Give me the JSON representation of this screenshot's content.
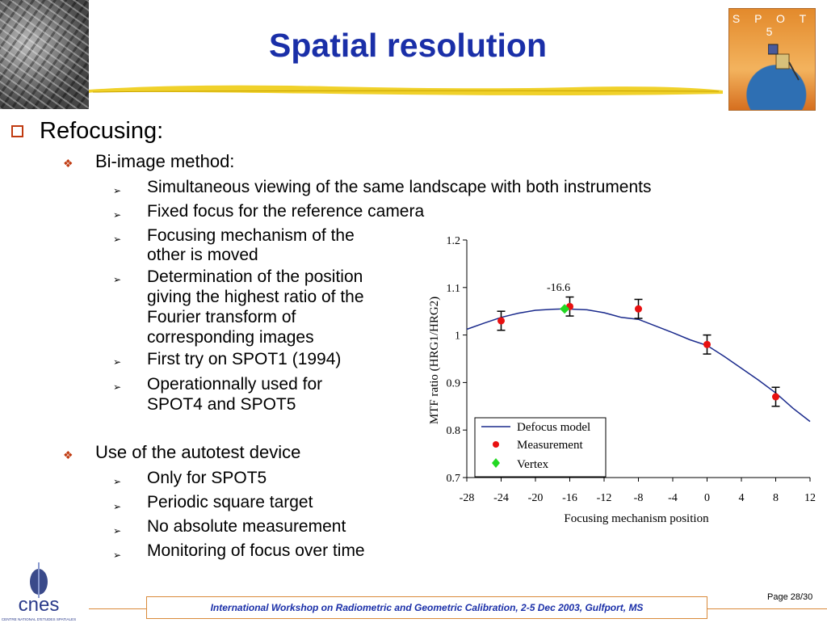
{
  "slide": {
    "title": "Spatial resolution",
    "logo_text": "S P O T 5",
    "page": "Page 28/30",
    "footer": "International Workshop on Radiometric and Geometric Calibration, 2-5 Dec 2003, Gulfport, MS",
    "cnes_text": "cnes",
    "cnes_subtext": "CENTRE NATIONAL D'ETUDES SPATIALES"
  },
  "content": {
    "l1": "Refocusing:",
    "bi_image": {
      "label": "Bi-image method:",
      "items": [
        "Simultaneous viewing of the same landscape with both instruments",
        "Fixed focus for the reference camera",
        "Focusing mechanism of the",
        "other is moved",
        "Determination of the position",
        "giving the highest ratio of the",
        "Fourier transform of",
        "corresponding images",
        "First try on SPOT1 (1994)",
        "Operationnally used for",
        "SPOT4 and SPOT5"
      ]
    },
    "autotest": {
      "label": "Use of the autotest device",
      "items": [
        "Only for SPOT5",
        "Periodic square target",
        "No absolute measurement",
        "Monitoring of focus over time"
      ]
    }
  },
  "chart_data": {
    "type": "scatter",
    "xlabel": "Focusing mechanism position",
    "ylabel": "MTF ratio (HRG1/HRG2)",
    "xlim": [
      -28,
      12
    ],
    "ylim": [
      0.7,
      1.2
    ],
    "xticks": [
      "-28",
      "-24",
      "-20",
      "-16",
      "-12",
      "-8",
      "-4",
      "0",
      "4",
      "8",
      "12"
    ],
    "yticks": [
      "0.7",
      "0.8",
      "0.9",
      "1",
      "1.1",
      "1.2"
    ],
    "xtick_values": [
      -28,
      -24,
      -20,
      -16,
      -12,
      -8,
      -4,
      0,
      4,
      8,
      12
    ],
    "ytick_values": [
      0.7,
      0.8,
      0.9,
      1,
      1.1,
      1.2
    ],
    "annotation": "-16.6",
    "series": [
      {
        "name": "Defocus model",
        "kind": "line",
        "color": "#1a2a8c",
        "x": [
          -28,
          -26,
          -24,
          -22,
          -20,
          -18,
          -16.6,
          -14,
          -12,
          -10,
          -8,
          -6,
          -4,
          -2,
          0,
          2,
          4,
          6,
          8,
          10,
          12
        ],
        "y": [
          1.012,
          1.025,
          1.037,
          1.046,
          1.052,
          1.054,
          1.055,
          1.053,
          1.047,
          1.037,
          1.033,
          1.019,
          1.005,
          0.99,
          0.978,
          0.955,
          0.93,
          0.905,
          0.878,
          0.846,
          0.818
        ]
      },
      {
        "name": "Measurement",
        "kind": "points",
        "color": "#e81010",
        "x": [
          -24,
          -16,
          -8,
          0,
          8
        ],
        "y": [
          1.03,
          1.06,
          1.055,
          0.98,
          0.87
        ],
        "err": [
          0.02,
          0.02,
          0.02,
          0.02,
          0.02
        ]
      },
      {
        "name": "Vertex",
        "kind": "diamond",
        "color": "#22d822",
        "x": [
          -16.6
        ],
        "y": [
          1.055
        ]
      }
    ],
    "legend": "bottom-left"
  }
}
